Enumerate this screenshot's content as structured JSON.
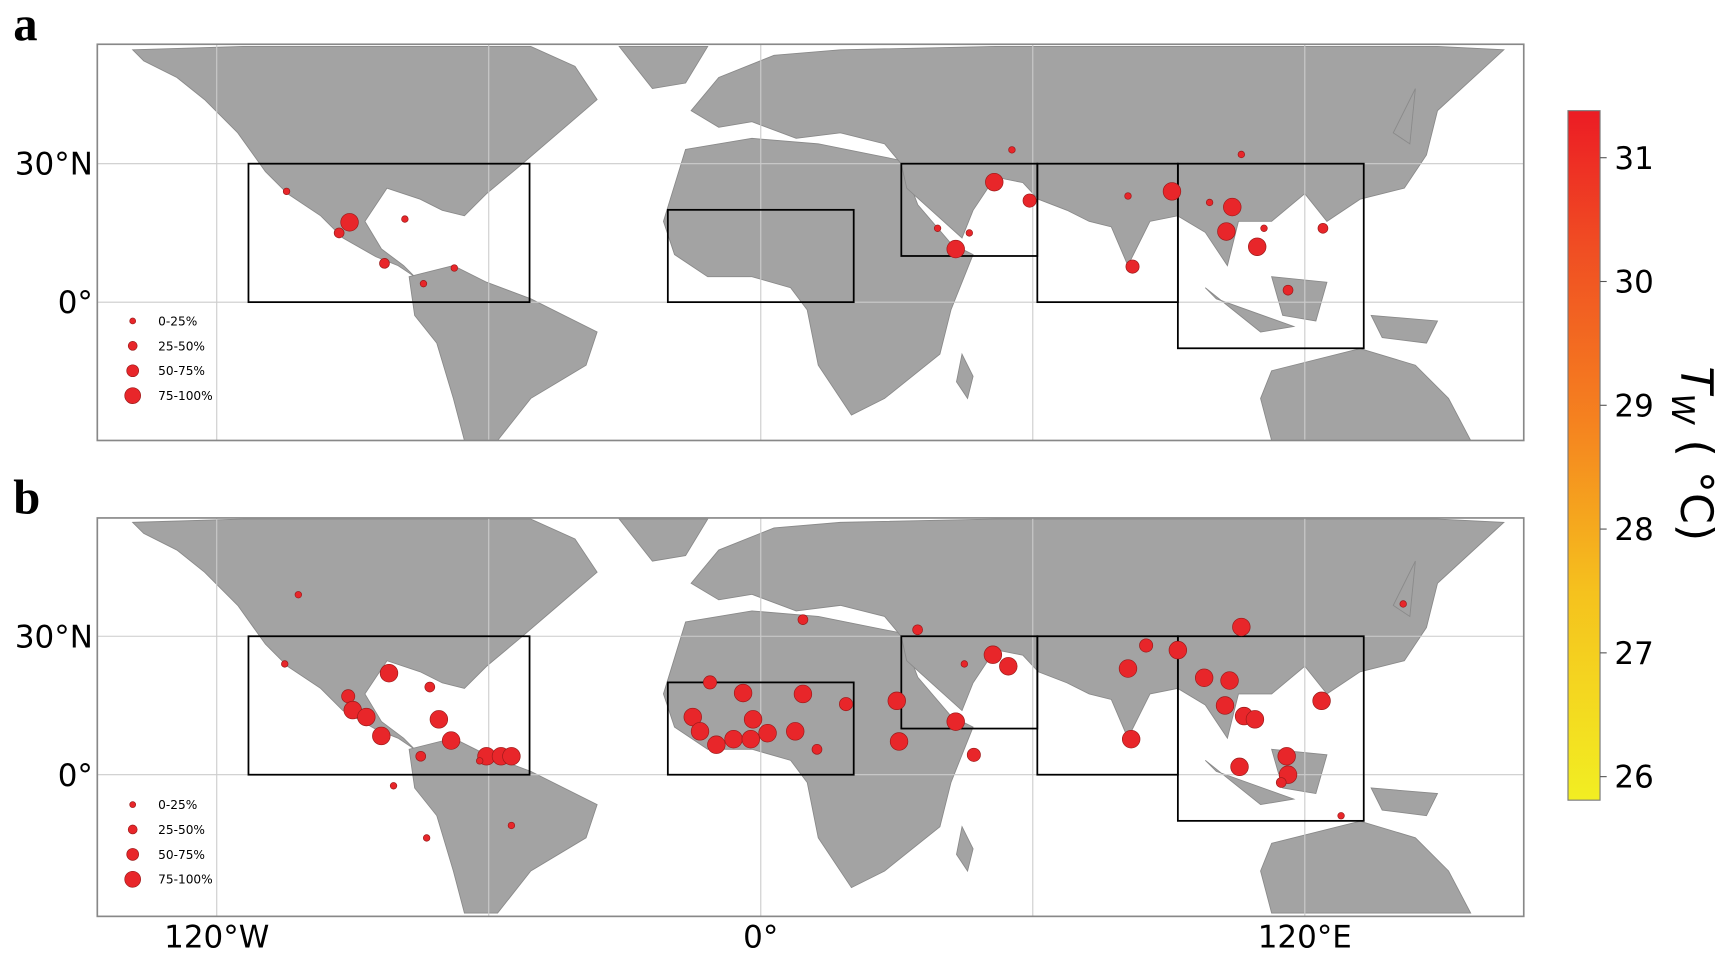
{
  "panels": [
    {
      "label": "a",
      "boxes": [
        [
          -113,
          0,
          -51,
          30
        ],
        [
          -20.5,
          0,
          20.5,
          20
        ],
        [
          31,
          10,
          61,
          30
        ],
        [
          61,
          0,
          92,
          30
        ],
        [
          92,
          -10,
          133,
          30
        ]
      ],
      "dots": [
        [
          -104.6,
          24,
          0
        ],
        [
          -90.7,
          17.3,
          3
        ],
        [
          -93,
          15,
          1
        ],
        [
          -83,
          8.4,
          1
        ],
        [
          -78.5,
          18,
          0
        ],
        [
          -74.4,
          4,
          0
        ],
        [
          -67.6,
          7.4,
          0
        ],
        [
          51.5,
          26,
          3
        ],
        [
          59.3,
          22,
          2
        ],
        [
          55.4,
          33,
          0
        ],
        [
          43,
          11.5,
          3
        ],
        [
          46,
          15,
          0
        ],
        [
          39,
          16,
          0
        ],
        [
          82,
          7.7,
          2
        ],
        [
          90.7,
          24,
          3
        ],
        [
          81,
          23,
          0
        ],
        [
          104,
          20.6,
          3
        ],
        [
          102.7,
          15.3,
          3
        ],
        [
          109.5,
          12,
          3
        ],
        [
          106,
          32,
          0
        ],
        [
          124,
          16,
          1
        ],
        [
          116.3,
          2.6,
          1
        ],
        [
          99,
          21.6,
          0
        ],
        [
          111,
          16,
          0
        ]
      ]
    },
    {
      "label": "b",
      "boxes": [
        [
          -113,
          0,
          -51,
          30
        ],
        [
          -20.5,
          0,
          20.5,
          20
        ],
        [
          31,
          10,
          61,
          30
        ],
        [
          61,
          0,
          92,
          30
        ],
        [
          92,
          -10,
          133,
          30
        ]
      ],
      "dots": [
        [
          -102,
          39,
          0
        ],
        [
          -105,
          24,
          0
        ],
        [
          -91,
          17,
          2
        ],
        [
          -90,
          14,
          3
        ],
        [
          -87,
          12.5,
          3
        ],
        [
          -83.7,
          8.4,
          3
        ],
        [
          -82,
          22,
          3
        ],
        [
          -71,
          12,
          3
        ],
        [
          -68.3,
          7.4,
          3
        ],
        [
          -75,
          4,
          1
        ],
        [
          -60.5,
          4,
          3
        ],
        [
          -57.3,
          4,
          3
        ],
        [
          -55,
          4,
          3
        ],
        [
          -73,
          19,
          1
        ],
        [
          -62,
          3,
          0
        ],
        [
          -55,
          -11,
          0
        ],
        [
          -73.7,
          -13.7,
          0
        ],
        [
          -81,
          -2.4,
          0
        ],
        [
          -11.2,
          20,
          2
        ],
        [
          -3.9,
          17.7,
          3
        ],
        [
          9.3,
          17.5,
          3
        ],
        [
          18.8,
          15.3,
          2
        ],
        [
          -15,
          12.5,
          3
        ],
        [
          -13.4,
          9.4,
          3
        ],
        [
          -9.8,
          6.5,
          3
        ],
        [
          -6,
          7.7,
          3
        ],
        [
          -1.7,
          12,
          3
        ],
        [
          -2.2,
          7.7,
          3
        ],
        [
          1.5,
          9,
          3
        ],
        [
          7.6,
          9.4,
          3
        ],
        [
          12.4,
          5.5,
          1
        ],
        [
          9.3,
          33.6,
          1
        ],
        [
          30,
          16,
          3
        ],
        [
          30.5,
          7.2,
          3
        ],
        [
          43,
          11.5,
          3
        ],
        [
          47,
          4.3,
          2
        ],
        [
          51.2,
          26,
          3
        ],
        [
          54.6,
          23.5,
          3
        ],
        [
          44.9,
          24,
          0
        ],
        [
          34.6,
          31.4,
          1
        ],
        [
          81,
          23,
          3
        ],
        [
          81.7,
          7.7,
          3
        ],
        [
          85,
          28,
          2
        ],
        [
          92,
          27,
          3
        ],
        [
          97.8,
          21,
          3
        ],
        [
          103.4,
          20.4,
          3
        ],
        [
          102.4,
          15,
          3
        ],
        [
          106.6,
          12.7,
          3
        ],
        [
          109,
          12,
          3
        ],
        [
          106,
          32,
          3
        ],
        [
          123.7,
          16,
          3
        ],
        [
          105.6,
          1.7,
          3
        ],
        [
          116,
          4,
          3
        ],
        [
          116.3,
          0,
          3
        ],
        [
          114.8,
          -1.7,
          1
        ],
        [
          128,
          -8.9,
          0
        ],
        [
          141.7,
          37,
          0
        ]
      ]
    }
  ],
  "lat_ticks": [
    {
      "value": 30,
      "label": "30°N"
    },
    {
      "value": 0,
      "label": "0°"
    }
  ],
  "lon_ticks": [
    {
      "value": -120,
      "label": "120°W"
    },
    {
      "value": 0,
      "label": "0°"
    },
    {
      "value": 120,
      "label": "120°E"
    }
  ],
  "lon_grid": [
    -120,
    -60,
    0,
    60,
    120
  ],
  "legend": [
    "0-25%",
    "25-50%",
    "50-75%",
    "75-100%"
  ],
  "colorbar": {
    "label": "T",
    "subscript": "W",
    "unit": "( °C)",
    "range": [
      25.81,
      31.38
    ],
    "ticks": [
      26,
      27,
      28,
      29,
      30,
      31
    ]
  }
}
